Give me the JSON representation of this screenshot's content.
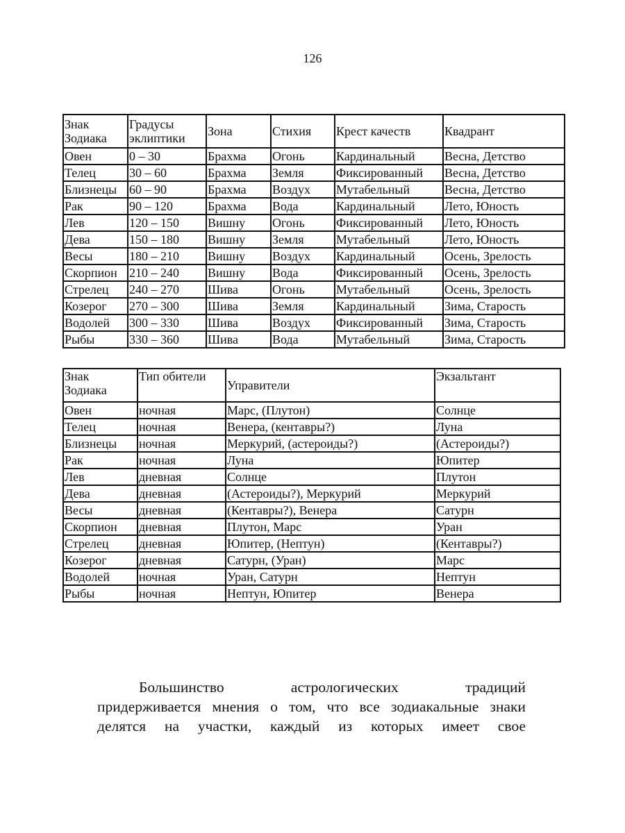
{
  "page_number": "126",
  "table1": {
    "headers": [
      "Знак\nЗодиака",
      "Градусы\nэклиптики",
      "Зона",
      "Стихия",
      "Крест качеств",
      "Квадрант"
    ],
    "rows": [
      [
        "Овен",
        "0 – 30",
        "Брахма",
        "Огонь",
        "Кардинальный",
        "Весна, Детство"
      ],
      [
        "Телец",
        "30 – 60",
        "Брахма",
        "Земля",
        "Фиксированный",
        "Весна, Детство"
      ],
      [
        "Близнецы",
        "60 – 90",
        "Брахма",
        "Воздух",
        "Мутабельный",
        "Весна, Детство"
      ],
      [
        "Рак",
        "90 – 120",
        "Брахма",
        "Вода",
        "Кардинальный",
        "Лето, Юность"
      ],
      [
        "Лев",
        "120 – 150",
        "Вишну",
        "Огонь",
        "Фиксированный",
        "Лето, Юность"
      ],
      [
        "Дева",
        "150 – 180",
        "Вишну",
        "Земля",
        "Мутабельный",
        "Лето, Юность"
      ],
      [
        "Весы",
        "180 – 210",
        "Вишну",
        "Воздух",
        "Кардинальный",
        "Осень, Зрелость"
      ],
      [
        "Скорпион",
        "210 – 240",
        "Вишну",
        "Вода",
        "Фиксированный",
        "Осень, Зрелость"
      ],
      [
        "Стрелец",
        "240 – 270",
        "Шива",
        "Огонь",
        "Мутабельный",
        "Осень, Зрелость"
      ],
      [
        "Козерог",
        "270 – 300",
        "Шива",
        "Земля",
        "Кардинальный",
        "Зима, Старость"
      ],
      [
        "Водолей",
        "300 – 330",
        "Шива",
        "Воздух",
        "Фиксированный",
        "Зима, Старость"
      ],
      [
        "Рыбы",
        "330 – 360",
        "Шива",
        "Вода",
        "Мутабельный",
        "Зима, Старость"
      ]
    ]
  },
  "table2": {
    "headers": [
      "Знак\nЗодиака",
      "Тип обители",
      "Управители",
      "Экзальтант"
    ],
    "rows": [
      [
        "Овен",
        "ночная",
        "Марс, (Плутон)",
        "Солнце"
      ],
      [
        "Телец",
        "ночная",
        "Венера, (кентавры?)",
        "Луна"
      ],
      [
        "Близнецы",
        "ночная",
        "Меркурий, (астероиды?)",
        "(Астероиды?)"
      ],
      [
        "Рак",
        "ночная",
        "Луна",
        "Юпитер"
      ],
      [
        "Лев",
        "дневная",
        "Солнце",
        "Плутон"
      ],
      [
        "Дева",
        "дневная",
        "(Астероиды?), Меркурий",
        "Меркурий"
      ],
      [
        "Весы",
        "дневная",
        "(Кентавры?), Венера",
        "Сатурн"
      ],
      [
        "Скорпион",
        "дневная",
        "Плутон, Марс",
        "Уран"
      ],
      [
        "Стрелец",
        "дневная",
        "Юпитер, (Нептун)",
        "(Кентавры?)"
      ],
      [
        "Козерог",
        "дневная",
        "Сатурн, (Уран)",
        "Марс"
      ],
      [
        "Водолей",
        "ночная",
        "Уран, Сатурн",
        "Нептун"
      ],
      [
        "Рыбы",
        "ночная",
        "Нептун, Юпитер",
        "Венера"
      ]
    ]
  },
  "paragraph": {
    "lines": [
      "Большинство астрологических традиций",
      "придерживается мнения о том, что все зодиакальные знаки",
      "делятся на участки, каждый из которых имеет свое"
    ]
  }
}
